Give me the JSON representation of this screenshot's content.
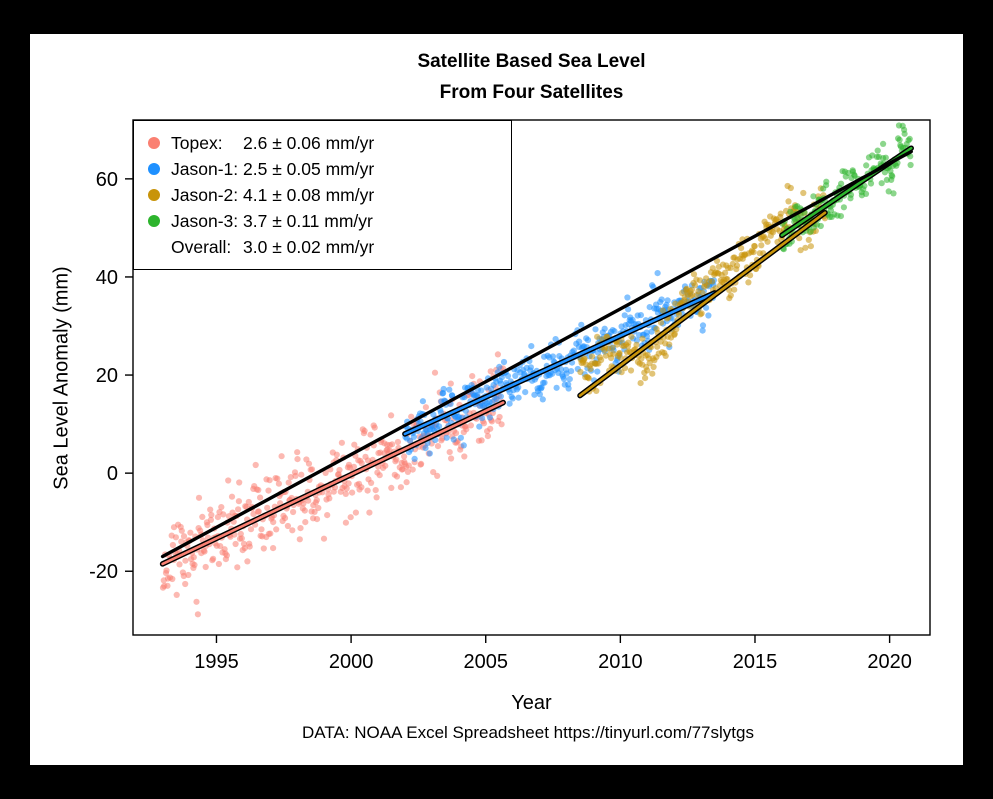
{
  "chart": {
    "title_line1": "Satellite Based Sea Level",
    "title_line2": "From Four Satellites",
    "xlabel": "Year",
    "ylabel": "Sea Level Anomaly (mm)",
    "caption": "DATA: NOAA Excel Spreadsheet https://tinyurl.com/77slytgs"
  },
  "chart_data": {
    "type": "scatter",
    "title": "Satellite Based Sea Level From Four Satellites",
    "xlabel": "Year",
    "ylabel": "Sea Level Anomaly (mm)",
    "xlim": [
      1991.9,
      2021.5
    ],
    "ylim": [
      -33,
      72
    ],
    "x_ticks": [
      1995,
      2000,
      2005,
      2010,
      2015,
      2020
    ],
    "y_ticks": [
      -20,
      0,
      20,
      40,
      60
    ],
    "grid": false,
    "legend_position": "top-left",
    "point_opacity": 0.55,
    "series": [
      {
        "name": "Topex",
        "legend_label": "Topex:",
        "rate_label": "2.6 ± 0.06 mm/yr",
        "rate_mm_per_yr": 2.6,
        "rate_error_mm_per_yr": 0.06,
        "color": "#FA8072",
        "trend": {
          "t0": 1993.0,
          "t1": 2005.65,
          "v0": -18.5,
          "slope": 2.6
        },
        "points": {
          "n": 450,
          "t0": 1993.0,
          "t1": 2005.65,
          "v0": -18.5,
          "slope": 2.6,
          "sd": 3.9,
          "seasonal_amp": 1.6,
          "seed": 11,
          "events": []
        }
      },
      {
        "name": "Jason-1",
        "legend_label": "Jason-1:",
        "rate_label": "2.5 ± 0.05 mm/yr",
        "rate_mm_per_yr": 2.5,
        "rate_error_mm_per_yr": 0.05,
        "color": "#1E90FF",
        "trend": {
          "t0": 2002.0,
          "t1": 2013.5,
          "v0": 8.0,
          "slope": 2.5
        },
        "points": {
          "n": 420,
          "t0": 2002.0,
          "t1": 2013.5,
          "v0": 8.0,
          "slope": 2.5,
          "sd": 2.3,
          "seasonal_amp": 1.4,
          "seed": 22,
          "events": []
        }
      },
      {
        "name": "Jason-2",
        "legend_label": "Jason-2:",
        "rate_label": "4.1 ± 0.08 mm/yr",
        "rate_mm_per_yr": 4.1,
        "rate_error_mm_per_yr": 0.08,
        "color": "#C8940A",
        "trend": {
          "t0": 2008.5,
          "t1": 2017.6,
          "v0": 15.8,
          "slope": 4.1
        },
        "points": {
          "n": 330,
          "t0": 2008.5,
          "t1": 2017.6,
          "v0": 20.5,
          "slope": 3.6,
          "sd": 2.3,
          "seasonal_amp": 1.5,
          "seed": 33,
          "events": [
            {
              "center": 2011.1,
              "width": 0.55,
              "amp": -6.5
            },
            {
              "center": 2015.9,
              "width": 0.5,
              "amp": 3.5
            }
          ]
        }
      },
      {
        "name": "Jason-3",
        "legend_label": "Jason-3:",
        "rate_label": "3.7 ± 0.11 mm/yr",
        "rate_mm_per_yr": 3.7,
        "rate_error_mm_per_yr": 0.11,
        "color": "#2DB42D",
        "trend": {
          "t0": 2016.0,
          "t1": 2020.8,
          "v0": 48.5,
          "slope": 3.7
        },
        "points": {
          "n": 175,
          "t0": 2016.0,
          "t1": 2020.8,
          "v0": 48.5,
          "slope": 3.7,
          "sd": 2.0,
          "seasonal_amp": 1.2,
          "seed": 44,
          "events": []
        }
      }
    ],
    "overall": {
      "name": "Overall",
      "legend_label": "Overall:",
      "rate_label": "3.0 ± 0.02 mm/yr",
      "rate_mm_per_yr": 3.0,
      "rate_error_mm_per_yr": 0.02,
      "color": "#000000",
      "trend": {
        "t0": 1993.0,
        "t1": 2020.8,
        "v0": -17.0,
        "slope": 2.97
      }
    }
  }
}
